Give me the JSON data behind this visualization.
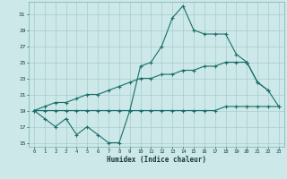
{
  "title": "",
  "xlabel": "Humidex (Indice chaleur)",
  "x": [
    0,
    1,
    2,
    3,
    4,
    5,
    6,
    7,
    8,
    9,
    10,
    11,
    12,
    13,
    14,
    15,
    16,
    17,
    18,
    19,
    20,
    21,
    22,
    23
  ],
  "line1_y": [
    19,
    18,
    17,
    18,
    16,
    17,
    16,
    15,
    15,
    19,
    24.5,
    25,
    27,
    30.5,
    32,
    29,
    28.5,
    28.5,
    28.5,
    26,
    25,
    22.5,
    21.5,
    null
  ],
  "line2_y": [
    19,
    19,
    19,
    19,
    19,
    19,
    19,
    19,
    19,
    19,
    19,
    19,
    19,
    19,
    19,
    19,
    19,
    19,
    19.5,
    19.5,
    19.5,
    19.5,
    19.5,
    19.5
  ],
  "line3_y": [
    19,
    19.5,
    20,
    20,
    20.5,
    21,
    21,
    21.5,
    22,
    22.5,
    23,
    23,
    23.5,
    23.5,
    24,
    24,
    24.5,
    24.5,
    25,
    25,
    25,
    null,
    null,
    null
  ],
  "line4_y": [
    null,
    null,
    null,
    null,
    null,
    null,
    null,
    null,
    null,
    null,
    null,
    null,
    null,
    null,
    null,
    null,
    null,
    null,
    null,
    null,
    25,
    22.5,
    21.5,
    19.5
  ],
  "bg_color": "#cce8e8",
  "grid_color": "#aacccc",
  "line_color": "#1a6e6a",
  "yticks": [
    15,
    17,
    19,
    21,
    23,
    25,
    27,
    29,
    31
  ],
  "xticks": [
    0,
    1,
    2,
    3,
    4,
    5,
    6,
    7,
    8,
    9,
    10,
    11,
    12,
    13,
    14,
    15,
    16,
    17,
    18,
    19,
    20,
    21,
    22,
    23
  ],
  "ylim": [
    14.5,
    32.5
  ],
  "xlim": [
    -0.5,
    23.5
  ]
}
